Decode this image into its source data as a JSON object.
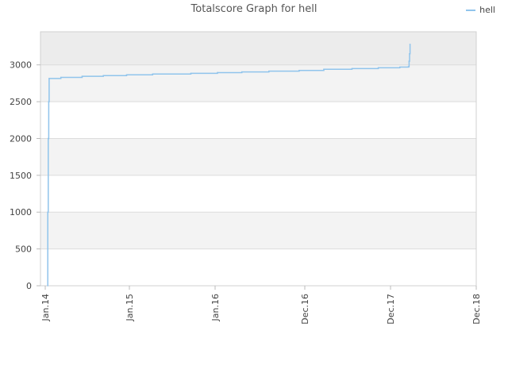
{
  "chart_data": {
    "type": "line",
    "title": "Totalscore Graph for hell",
    "xlabel": "",
    "ylabel": "",
    "x_ticks": [
      "Jan.14",
      "Jan.15",
      "Jan.16",
      "Dec.16",
      "Dec.17",
      "Dec.18"
    ],
    "y_ticks": [
      "0",
      "500",
      "1000",
      "1500",
      "2000",
      "2500",
      "3000"
    ],
    "ylim": [
      0,
      3450
    ],
    "grid": true,
    "legend_position": "top-right",
    "series": [
      {
        "name": "hell",
        "color": "#90c4ec",
        "step": true,
        "points": [
          {
            "x": "2014-01-12",
            "y": 0
          },
          {
            "x": "2014-01-12",
            "y": 1000
          },
          {
            "x": "2014-01-14",
            "y": 2000
          },
          {
            "x": "2014-01-16",
            "y": 2500
          },
          {
            "x": "2014-01-18",
            "y": 2815
          },
          {
            "x": "2014-03-10",
            "y": 2830
          },
          {
            "x": "2014-06-10",
            "y": 2845
          },
          {
            "x": "2014-09-10",
            "y": 2855
          },
          {
            "x": "2014-12-20",
            "y": 2865
          },
          {
            "x": "2015-04-10",
            "y": 2875
          },
          {
            "x": "2015-09-20",
            "y": 2885
          },
          {
            "x": "2016-01-10",
            "y": 2895
          },
          {
            "x": "2016-04-10",
            "y": 2905
          },
          {
            "x": "2016-07-20",
            "y": 2915
          },
          {
            "x": "2016-11-10",
            "y": 2925
          },
          {
            "x": "2017-02-20",
            "y": 2940
          },
          {
            "x": "2017-06-20",
            "y": 2950
          },
          {
            "x": "2017-10-10",
            "y": 2960
          },
          {
            "x": "2018-01-10",
            "y": 2970
          },
          {
            "x": "2018-02-15",
            "y": 2975
          },
          {
            "x": "2018-02-18",
            "y": 3050
          },
          {
            "x": "2018-02-20",
            "y": 3150
          },
          {
            "x": "2018-02-22",
            "y": 3280
          }
        ]
      }
    ]
  }
}
